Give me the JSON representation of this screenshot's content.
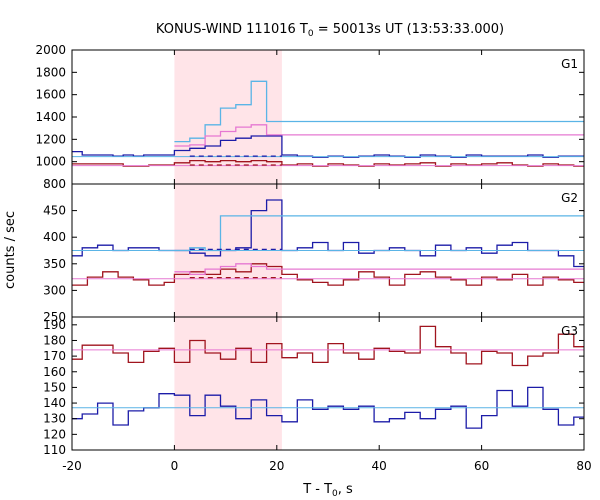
{
  "chart_data": {
    "type": "line",
    "title": "KONUS-WIND 111016 T",
    "title_sub": "0",
    "title_rest": " = 50013s UT (13:53:33.000)",
    "xlabel": "T - T",
    "xlabel_sub": "0",
    "xlabel_rest": ", s",
    "ylabel": "counts / sec",
    "xlim": [
      -20,
      80
    ],
    "x_ticks": [
      -20,
      0,
      20,
      40,
      60,
      80
    ],
    "shaded_interval": [
      0,
      21
    ],
    "panels": [
      {
        "name": "G1",
        "ylim": [
          800,
          2000
        ],
        "y_ticks": [
          800,
          1000,
          1200,
          1400,
          1600,
          1800,
          2000
        ],
        "series": [
          {
            "color": "#1c1ca8",
            "style": "step",
            "x": [
              -20,
              -18,
              -16,
              -14,
              -12,
              -10,
              -8,
              -6,
              -4,
              -2,
              0,
              3,
              6,
              9,
              12,
              15,
              18,
              21,
              24,
              27,
              30,
              33,
              36,
              39,
              42,
              45,
              48,
              51,
              54,
              57,
              60,
              63,
              66,
              69,
              72,
              75,
              78
            ],
            "y": [
              1090,
              1060,
              1060,
              1060,
              1050,
              1060,
              1050,
              1060,
              1060,
              1060,
              1100,
              1120,
              1140,
              1190,
              1210,
              1230,
              1230,
              1060,
              1050,
              1040,
              1050,
              1040,
              1050,
              1060,
              1050,
              1040,
              1060,
              1050,
              1040,
              1060,
              1050,
              1050,
              1050,
              1060,
              1040,
              1050,
              1050
            ]
          },
          {
            "color": "#a0141e",
            "style": "step",
            "x": [
              -20,
              -15,
              -10,
              -5,
              0,
              3,
              6,
              9,
              12,
              15,
              18,
              21,
              24,
              27,
              30,
              33,
              36,
              39,
              42,
              45,
              48,
              51,
              54,
              57,
              60,
              63,
              66,
              69,
              72,
              75,
              78
            ],
            "y": [
              980,
              980,
              960,
              970,
              990,
              1010,
              1000,
              1010,
              1000,
              1010,
              1000,
              970,
              980,
              960,
              980,
              970,
              960,
              980,
              970,
              980,
              990,
              960,
              980,
              970,
              980,
              990,
              970,
              960,
              980,
              970,
              960
            ]
          },
          {
            "color": "#5ab4e6",
            "style": "step",
            "x": [
              0,
              3,
              6,
              9,
              12,
              15,
              18,
              21
            ],
            "y": [
              1180,
              1210,
              1330,
              1480,
              1510,
              1720,
              1360,
              1360
            ]
          },
          {
            "color": "#e678d2",
            "style": "step",
            "x": [
              0,
              3,
              6,
              9,
              12,
              15,
              18,
              21
            ],
            "y": [
              1140,
              1150,
              1230,
              1270,
              1310,
              1330,
              1240,
              1240
            ]
          },
          {
            "color": "#5ab4e6",
            "style": "line",
            "x": [
              -20,
              80
            ],
            "y": [
              1045,
              1045
            ]
          },
          {
            "color": "#e678d2",
            "style": "line",
            "x": [
              -20,
              80
            ],
            "y": [
              965,
              965
            ]
          },
          {
            "color": "#1c1ca8",
            "style": "dash",
            "x": [
              3,
              21
            ],
            "y": [
              1050,
              1050
            ]
          },
          {
            "color": "#a0141e",
            "style": "dash",
            "x": [
              3,
              21
            ],
            "y": [
              970,
              970
            ]
          }
        ]
      },
      {
        "name": "G2",
        "ylim": [
          250,
          500
        ],
        "y_ticks": [
          250,
          300,
          350,
          400,
          450
        ],
        "series": [
          {
            "color": "#1c1ca8",
            "style": "step",
            "x": [
              -20,
              -18,
              -15,
              -12,
              -9,
              -6,
              -3,
              0,
              3,
              6,
              9,
              12,
              15,
              18,
              21,
              24,
              27,
              30,
              33,
              36,
              39,
              42,
              45,
              48,
              51,
              54,
              57,
              60,
              63,
              66,
              69,
              72,
              75,
              78
            ],
            "y": [
              365,
              380,
              385,
              375,
              380,
              380,
              375,
              375,
              370,
              365,
              375,
              380,
              450,
              470,
              375,
              380,
              390,
              375,
              390,
              370,
              375,
              380,
              375,
              365,
              385,
              375,
              380,
              370,
              385,
              390,
              375,
              375,
              365,
              345
            ]
          },
          {
            "color": "#a0141e",
            "style": "step",
            "x": [
              -20,
              -17,
              -14,
              -11,
              -8,
              -5,
              -2,
              0,
              3,
              6,
              9,
              12,
              15,
              18,
              21,
              24,
              27,
              30,
              33,
              36,
              39,
              42,
              45,
              48,
              51,
              54,
              57,
              60,
              63,
              66,
              69,
              72,
              75,
              78
            ],
            "y": [
              310,
              325,
              335,
              325,
              320,
              310,
              315,
              330,
              335,
              330,
              340,
              335,
              350,
              345,
              330,
              320,
              315,
              310,
              320,
              335,
              325,
              310,
              330,
              335,
              325,
              320,
              310,
              325,
              320,
              330,
              310,
              325,
              320,
              315
            ]
          },
          {
            "color": "#5ab4e6",
            "style": "step",
            "x": [
              0,
              3,
              6,
              9,
              12,
              15,
              18,
              21
            ],
            "y": [
              375,
              380,
              375,
              440,
              440,
              440,
              440,
              440
            ]
          },
          {
            "color": "#e678d2",
            "style": "step",
            "x": [
              0,
              3,
              6,
              9,
              12,
              15,
              18,
              21
            ],
            "y": [
              335,
              330,
              340,
              345,
              350,
              345,
              340,
              340
            ]
          },
          {
            "color": "#5ab4e6",
            "style": "line",
            "x": [
              -20,
              80
            ],
            "y": [
              375,
              375
            ]
          },
          {
            "color": "#e678d2",
            "style": "line",
            "x": [
              -20,
              80
            ],
            "y": [
              322,
              322
            ]
          },
          {
            "color": "#1c1ca8",
            "style": "dash",
            "x": [
              3,
              21
            ],
            "y": [
              377,
              377
            ]
          },
          {
            "color": "#a0141e",
            "style": "dash",
            "x": [
              3,
              21
            ],
            "y": [
              324,
              324
            ]
          }
        ]
      },
      {
        "name": "G3",
        "ylim": [
          110,
          195
        ],
        "y_ticks": [
          110,
          120,
          130,
          140,
          150,
          160,
          170,
          180,
          190
        ],
        "series": [
          {
            "color": "#a0141e",
            "style": "step",
            "x": [
              -20,
              -18,
              -15,
              -12,
              -9,
              -6,
              -3,
              0,
              3,
              6,
              9,
              12,
              15,
              18,
              21,
              24,
              27,
              30,
              33,
              36,
              39,
              42,
              45,
              48,
              51,
              54,
              57,
              60,
              63,
              66,
              69,
              72,
              75,
              78
            ],
            "y": [
              168,
              177,
              177,
              172,
              166,
              173,
              175,
              166,
              180,
              172,
              168,
              175,
              166,
              178,
              169,
              172,
              166,
              178,
              172,
              168,
              175,
              173,
              172,
              189,
              176,
              172,
              165,
              173,
              172,
              164,
              170,
              172,
              184,
              176
            ]
          },
          {
            "color": "#1c1ca8",
            "style": "step",
            "x": [
              -20,
              -18,
              -15,
              -12,
              -9,
              -6,
              -3,
              0,
              3,
              6,
              9,
              12,
              15,
              18,
              21,
              24,
              27,
              30,
              33,
              36,
              39,
              42,
              45,
              48,
              51,
              54,
              57,
              60,
              63,
              66,
              69,
              72,
              75,
              78
            ],
            "y": [
              130,
              133,
              140,
              126,
              135,
              137,
              146,
              145,
              132,
              145,
              138,
              130,
              142,
              132,
              128,
              142,
              136,
              138,
              136,
              138,
              128,
              130,
              134,
              130,
              136,
              138,
              124,
              132,
              148,
              138,
              150,
              136,
              126,
              131
            ]
          },
          {
            "color": "#5ab4e6",
            "style": "line",
            "x": [
              -20,
              80
            ],
            "y": [
              137,
              137
            ]
          },
          {
            "color": "#e678d2",
            "style": "line",
            "x": [
              -20,
              80
            ],
            "y": [
              174,
              174
            ]
          }
        ]
      }
    ]
  }
}
